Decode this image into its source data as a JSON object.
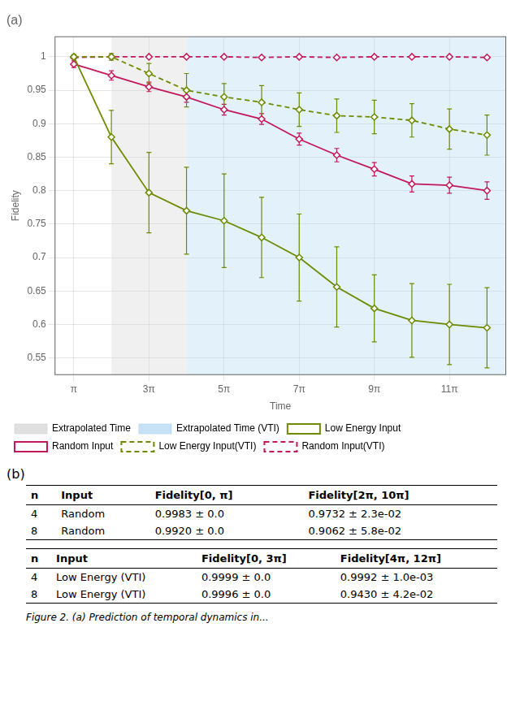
{
  "chart_data": {
    "type": "line",
    "title": "(a)",
    "x_label": "Time",
    "y_label": "Fidelity",
    "xlim": [
      0.5,
      12.5
    ],
    "xticks": [
      {
        "value": 1,
        "label": "π"
      },
      {
        "value": 3,
        "label": "3π"
      },
      {
        "value": 5,
        "label": "5π"
      },
      {
        "value": 7,
        "label": "7π"
      },
      {
        "value": 9,
        "label": "9π"
      },
      {
        "value": 11,
        "label": "11π"
      }
    ],
    "ylim": [
      0.525,
      1.03
    ],
    "yticks": [
      0.55,
      0.6,
      0.65,
      0.7,
      0.75,
      0.8,
      0.85,
      0.9,
      0.95,
      1
    ],
    "grid": true,
    "legend": "lower left",
    "regions": [
      {
        "name": "Extrapolated Time",
        "color": "#D3D3D3",
        "x": [
          2.0,
          4.0
        ]
      },
      {
        "name": "Extrapolated Time (VTI)",
        "color": "#AED6F1",
        "x": [
          4.0,
          12.5
        ]
      }
    ],
    "series": [
      {
        "name": "Low Energy Input",
        "color": "#6D8B00",
        "line_style": "solid",
        "marker": "diamond",
        "x": [
          1,
          2,
          3,
          4,
          5,
          6,
          7,
          8,
          9,
          10,
          11,
          12
        ],
        "values": [
          1.0,
          0.88,
          0.797,
          0.77,
          0.755,
          0.73,
          0.7,
          0.656,
          0.624,
          0.606,
          0.6,
          0.595
        ],
        "yerr": [
          0.003,
          0.04,
          0.06,
          0.065,
          0.07,
          0.06,
          0.065,
          0.06,
          0.05,
          0.055,
          0.06,
          0.06
        ]
      },
      {
        "name": "Random Input",
        "color": "#C2185B",
        "line_style": "solid",
        "marker": "diamond",
        "x": [
          1,
          2,
          3,
          4,
          5,
          6,
          7,
          8,
          9,
          10,
          11,
          12
        ],
        "values": [
          0.989,
          0.972,
          0.955,
          0.94,
          0.921,
          0.907,
          0.877,
          0.853,
          0.832,
          0.81,
          0.808,
          0.8
        ],
        "yerr": [
          0.005,
          0.007,
          0.007,
          0.008,
          0.008,
          0.008,
          0.009,
          0.01,
          0.01,
          0.012,
          0.012,
          0.013
        ]
      },
      {
        "name": "Low Energy Input(VTI)",
        "color": "#6D8B00",
        "line_style": "dashed",
        "marker": "diamond",
        "x": [
          1,
          2,
          3,
          4,
          5,
          6,
          7,
          8,
          9,
          10,
          11,
          12
        ],
        "values": [
          1.0,
          1.0,
          0.975,
          0.95,
          0.94,
          0.932,
          0.921,
          0.912,
          0.91,
          0.905,
          0.892,
          0.883
        ],
        "yerr": [
          0.003,
          0.005,
          0.015,
          0.025,
          0.02,
          0.025,
          0.025,
          0.025,
          0.025,
          0.025,
          0.03,
          0.03
        ]
      },
      {
        "name": "Random Input(VTI)",
        "color": "#C2185B",
        "line_style": "dashed",
        "marker": "diamond",
        "x": [
          1,
          2,
          3,
          4,
          5,
          6,
          7,
          8,
          9,
          10,
          11,
          12
        ],
        "values": [
          0.999,
          1.0,
          1.0,
          1.0,
          1.0,
          0.999,
          1.0,
          0.999,
          1.0,
          1.0,
          1.0,
          0.999
        ],
        "yerr": [
          0.001,
          0.001,
          0.001,
          0.001,
          0.001,
          0.001,
          0.001,
          0.001,
          0.001,
          0.001,
          0.001,
          0.001
        ]
      }
    ],
    "tables": {
      "title": "(b)",
      "items": [
        {
          "headers": [
            "n",
            "Input",
            "Fidelity[0, π]",
            "Fidelity[2π, 10π]"
          ],
          "rows": [
            [
              "4",
              "Random",
              "0.9983 ± 0.0",
              "0.9732 ± 2.3e-02"
            ],
            [
              "8",
              "Random",
              "0.9920 ± 0.0",
              "0.9062 ± 5.8e-02"
            ]
          ]
        },
        {
          "headers": [
            "n",
            "Input",
            "Fidelity[0, 3π]",
            "Fidelity[4π, 12π]"
          ],
          "rows": [
            [
              "4",
              "Low Energy (VTI)",
              "0.9999 ± 0.0",
              "0.9992 ± 1.0e-03"
            ],
            [
              "8",
              "Low Energy (VTI)",
              "0.9996 ± 0.0",
              "0.9430 ± 4.2e-02"
            ]
          ]
        }
      ]
    },
    "caption": "Figure 2. (a) Prediction of temporal dynamics in..."
  }
}
